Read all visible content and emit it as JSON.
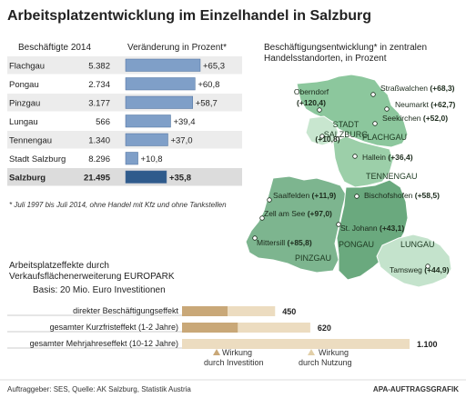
{
  "title": "Arbeitsplatzentwicklung im Einzelhandel in Salzburg",
  "table": {
    "col1_header": "Beschäftigte 2014",
    "col2_header": "Veränderung in Prozent*",
    "rows": [
      {
        "region": "Flachgau",
        "employees": "5.382",
        "change_label": "+65,3",
        "change": 65.3
      },
      {
        "region": "Pongau",
        "employees": "2.734",
        "change_label": "+60,8",
        "change": 60.8
      },
      {
        "region": "Pinzgau",
        "employees": "3.177",
        "change_label": "+58,7",
        "change": 58.7
      },
      {
        "region": "Lungau",
        "employees": "566",
        "change_label": "+39,4",
        "change": 39.4
      },
      {
        "region": "Tennengau",
        "employees": "1.340",
        "change_label": "+37,0",
        "change": 37.0
      },
      {
        "region": "Stadt Salzburg",
        "employees": "8.296",
        "change_label": "+10,8",
        "change": 10.8
      },
      {
        "region": "Salzburg",
        "employees": "21.495",
        "change_label": "+35,8",
        "change": 35.8
      }
    ],
    "footnote": "* Juli 1997 bis Juli 2014, ohne Handel mit Kfz und ohne Tankstellen"
  },
  "map": {
    "title_line1": "Beschäftigungsentwicklung* in zentralen",
    "title_line2": "Handelsstandorten, in Prozent",
    "regions": [
      "FLACHGAU",
      "TENNENGAU",
      "PONGAU",
      "PINZGAU",
      "LUNGAU"
    ],
    "city_region_line1": "STADT",
    "city_region_line2": "SALZBURG",
    "places": [
      {
        "name": "Oberndorf",
        "value": "(+120,4)"
      },
      {
        "name": "Straßwalchen",
        "value": "(+68,3)"
      },
      {
        "name": "Neumarkt",
        "value": "(+62,7)"
      },
      {
        "name": "Seekirchen",
        "value": "(+52,0)"
      },
      {
        "name": "Stadt Salzburg",
        "value": "(+10,8)"
      },
      {
        "name": "Hallein",
        "value": "(+36,4)"
      },
      {
        "name": "Saalfelden",
        "value": "(+11,9)"
      },
      {
        "name": "Bischofshofen",
        "value": "(+58,5)"
      },
      {
        "name": "Zell am See",
        "value": "(+97,0)"
      },
      {
        "name": "St. Johann",
        "value": "(+43,1)"
      },
      {
        "name": "Mittersill",
        "value": "(+85,8)"
      },
      {
        "name": "Tamsweg",
        "value": "(+44,9)"
      }
    ]
  },
  "effects": {
    "title_line1": "Arbeitsplatzeffekte durch",
    "title_line2": "Verkaufsflächenerweiterung EUROPARK",
    "subtitle": "Basis: 20 Mio. Euro Investitionen",
    "rows": [
      {
        "label": "direkter Beschäftigungseffekt",
        "investment": 220,
        "usage": 230,
        "total_label": "450"
      },
      {
        "label": "gesamter Kurzfristeffekt (1-2 Jahre)",
        "investment": 270,
        "usage": 350,
        "total_label": "620"
      },
      {
        "label": "gesamter Mehrjahreseffekt (10-12 Jahre)",
        "investment": 0,
        "usage": 1100,
        "total_label": "1.100"
      }
    ],
    "legend": {
      "investment_line1": "Wirkung",
      "investment_line2": "durch Investition",
      "usage_line1": "Wirkung",
      "usage_line2": "durch Nutzung"
    }
  },
  "chart_data": [
    {
      "type": "bar",
      "title": "Veränderung in Prozent*",
      "categories": [
        "Flachgau",
        "Pongau",
        "Pinzgau",
        "Lungau",
        "Tennengau",
        "Stadt Salzburg",
        "Salzburg"
      ],
      "values": [
        65.3,
        60.8,
        58.7,
        39.4,
        37.0,
        10.8,
        35.8
      ],
      "employees_2014": [
        5382,
        2734,
        3177,
        566,
        1340,
        8296,
        21495
      ]
    },
    {
      "type": "bar",
      "title": "Arbeitsplatzeffekte durch Verkaufsflächenerweiterung EUROPARK",
      "categories": [
        "direkter Beschäftigungseffekt",
        "gesamter Kurzfristeffekt (1-2 Jahre)",
        "gesamter Mehrjahreseffekt (10-12 Jahre)"
      ],
      "series": [
        {
          "name": "Wirkung durch Investition",
          "values": [
            220,
            270,
            0
          ]
        },
        {
          "name": "Wirkung durch Nutzung",
          "values": [
            230,
            350,
            1100
          ]
        }
      ],
      "totals": [
        450,
        620,
        1100
      ]
    }
  ],
  "footer": {
    "source": "Auftraggeber: SES, Quelle: AK Salzburg, Statistik Austria",
    "credit": "APA-AUFTRAGSGRAFIK"
  },
  "colors": {
    "bar": "#7f9fc8",
    "bar_dark": "#2f5b8c",
    "row_shade": "#ececec",
    "map_light": "#a9d3b2",
    "map_mid": "#7fbf92",
    "map_dark": "#5f9f74",
    "investment": "#c9a878",
    "usage": "#ecdcc0"
  }
}
